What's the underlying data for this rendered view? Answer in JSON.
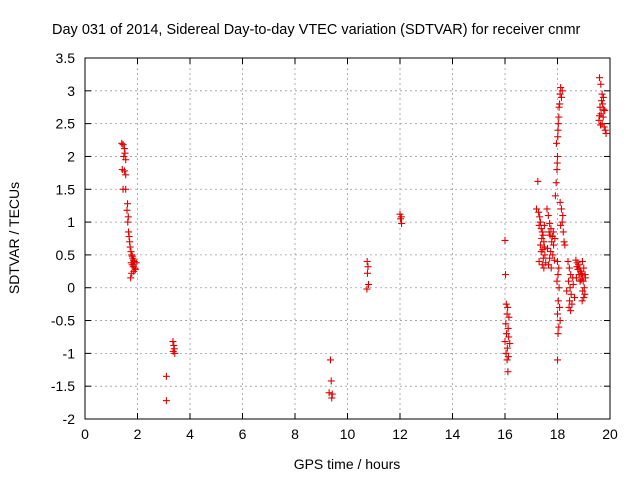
{
  "chart_data": {
    "type": "scatter",
    "title": "Day 031 of 2014, Sidereal Day-to-day VTEC variation (SDTVAR) for receiver cnmr",
    "xlabel": "GPS time / hours",
    "ylabel": "SDTVAR / TECUs",
    "xlim": [
      0,
      20
    ],
    "ylim": [
      -2,
      3.5
    ],
    "xticks": [
      "0",
      "2",
      "4",
      "6",
      "8",
      "10",
      "12",
      "14",
      "16",
      "18",
      "20"
    ],
    "yticks": [
      "3.5",
      "3",
      "2.5",
      "2",
      "1.5",
      "1",
      "0.5",
      "0",
      "-0.5",
      "-1",
      "-1.5",
      "-2"
    ],
    "grid": true,
    "marker": "+",
    "color": "#e00000",
    "series": [
      {
        "name": "SDTVAR",
        "points": [
          [
            1.4,
            2.2
          ],
          [
            1.45,
            2.18
          ],
          [
            1.5,
            2.12
          ],
          [
            1.52,
            2.05
          ],
          [
            1.48,
            2.0
          ],
          [
            1.55,
            1.95
          ],
          [
            1.42,
            1.8
          ],
          [
            1.5,
            1.78
          ],
          [
            1.55,
            1.72
          ],
          [
            1.45,
            1.5
          ],
          [
            1.55,
            1.5
          ],
          [
            1.62,
            1.28
          ],
          [
            1.6,
            1.18
          ],
          [
            1.65,
            1.08
          ],
          [
            1.63,
            1.0
          ],
          [
            1.66,
            0.85
          ],
          [
            1.68,
            0.78
          ],
          [
            1.7,
            0.7
          ],
          [
            1.72,
            0.62
          ],
          [
            1.75,
            0.55
          ],
          [
            1.78,
            0.5
          ],
          [
            1.8,
            0.48
          ],
          [
            1.82,
            0.45
          ],
          [
            1.85,
            0.42
          ],
          [
            1.88,
            0.4
          ],
          [
            1.76,
            0.38
          ],
          [
            1.8,
            0.35
          ],
          [
            1.84,
            0.32
          ],
          [
            1.9,
            0.3
          ],
          [
            1.92,
            0.28
          ],
          [
            1.86,
            0.25
          ],
          [
            1.78,
            0.22
          ],
          [
            1.74,
            0.15
          ],
          [
            1.95,
            0.38
          ],
          [
            3.1,
            -1.35
          ],
          [
            3.1,
            -1.72
          ],
          [
            3.35,
            -0.82
          ],
          [
            3.38,
            -0.88
          ],
          [
            3.4,
            -0.93
          ],
          [
            3.36,
            -0.97
          ],
          [
            3.42,
            -1.0
          ],
          [
            9.35,
            -1.1
          ],
          [
            9.38,
            -1.42
          ],
          [
            9.3,
            -1.6
          ],
          [
            9.42,
            -1.62
          ],
          [
            9.4,
            -1.68
          ],
          [
            10.75,
            0.4
          ],
          [
            10.78,
            0.32
          ],
          [
            10.76,
            0.22
          ],
          [
            10.8,
            0.05
          ],
          [
            10.74,
            -0.02
          ],
          [
            12.0,
            1.12
          ],
          [
            12.05,
            1.08
          ],
          [
            12.02,
            1.05
          ],
          [
            12.06,
            0.98
          ],
          [
            16.0,
            0.72
          ],
          [
            16.02,
            0.2
          ],
          [
            16.05,
            -0.25
          ],
          [
            16.1,
            -0.3
          ],
          [
            16.08,
            -0.4
          ],
          [
            16.15,
            -0.45
          ],
          [
            16.03,
            -0.55
          ],
          [
            16.12,
            -0.62
          ],
          [
            16.06,
            -0.7
          ],
          [
            16.14,
            -0.75
          ],
          [
            16.0,
            -0.82
          ],
          [
            16.18,
            -0.85
          ],
          [
            16.09,
            -0.92
          ],
          [
            16.04,
            -1.0
          ],
          [
            16.13,
            -1.05
          ],
          [
            16.08,
            -1.1
          ],
          [
            16.11,
            -1.28
          ],
          [
            17.25,
            1.62
          ],
          [
            17.2,
            1.2
          ],
          [
            17.28,
            1.15
          ],
          [
            17.32,
            1.08
          ],
          [
            17.35,
            1.0
          ],
          [
            17.3,
            0.95
          ],
          [
            17.38,
            0.9
          ],
          [
            17.42,
            0.85
          ],
          [
            17.45,
            0.8
          ],
          [
            17.4,
            0.75
          ],
          [
            17.48,
            0.7
          ],
          [
            17.35,
            0.65
          ],
          [
            17.5,
            0.62
          ],
          [
            17.44,
            0.58
          ],
          [
            17.38,
            0.55
          ],
          [
            17.52,
            0.5
          ],
          [
            17.46,
            0.45
          ],
          [
            17.3,
            0.4
          ],
          [
            17.55,
            0.38
          ],
          [
            17.42,
            0.35
          ],
          [
            17.48,
            0.3
          ],
          [
            17.5,
            0.95
          ],
          [
            17.6,
            1.2
          ],
          [
            17.65,
            1.1
          ],
          [
            17.7,
            0.98
          ],
          [
            17.75,
            0.9
          ],
          [
            17.68,
            0.85
          ],
          [
            17.72,
            0.8
          ],
          [
            17.8,
            0.78
          ],
          [
            17.78,
            0.7
          ],
          [
            17.85,
            0.65
          ],
          [
            17.62,
            0.6
          ],
          [
            17.74,
            0.55
          ],
          [
            17.82,
            0.5
          ],
          [
            17.7,
            0.45
          ],
          [
            17.88,
            0.42
          ],
          [
            17.66,
            0.35
          ],
          [
            17.76,
            0.3
          ],
          [
            17.84,
            0.85
          ],
          [
            17.9,
            0.75
          ],
          [
            17.92,
            1.4
          ],
          [
            17.95,
            1.6
          ],
          [
            17.98,
            1.8
          ],
          [
            18.0,
            2.0
          ],
          [
            17.96,
            2.2
          ],
          [
            18.02,
            2.4
          ],
          [
            18.05,
            2.6
          ],
          [
            18.08,
            2.8
          ],
          [
            18.1,
            2.95
          ],
          [
            18.12,
            3.05
          ],
          [
            18.15,
            2.9
          ],
          [
            18.18,
            3.0
          ],
          [
            18.06,
            2.75
          ],
          [
            18.03,
            2.5
          ],
          [
            18.01,
            2.3
          ],
          [
            17.99,
            1.9
          ],
          [
            18.1,
            1.3
          ],
          [
            18.15,
            1.2
          ],
          [
            18.2,
            1.1
          ],
          [
            18.18,
            1.0
          ],
          [
            18.22,
            0.85
          ],
          [
            18.25,
            0.7
          ],
          [
            18.28,
            0.65
          ],
          [
            18.12,
            0.95
          ],
          [
            18.0,
            0.4
          ],
          [
            18.05,
            0.3
          ],
          [
            18.02,
            0.2
          ],
          [
            17.98,
            0.1
          ],
          [
            18.06,
            0.0
          ],
          [
            18.03,
            -0.2
          ],
          [
            18.08,
            -0.3
          ],
          [
            18.0,
            -0.4
          ],
          [
            18.1,
            -0.5
          ],
          [
            18.05,
            -0.6
          ],
          [
            18.02,
            -0.7
          ],
          [
            18.0,
            -1.1
          ],
          [
            18.4,
            0.4
          ],
          [
            18.45,
            0.3
          ],
          [
            18.5,
            0.2
          ],
          [
            18.42,
            0.1
          ],
          [
            18.48,
            0.0
          ],
          [
            18.52,
            -0.1
          ],
          [
            18.46,
            -0.2
          ],
          [
            18.55,
            -0.25
          ],
          [
            18.44,
            -0.3
          ],
          [
            18.5,
            -0.35
          ],
          [
            18.6,
            0.05
          ],
          [
            18.65,
            -0.15
          ],
          [
            18.35,
            -0.05
          ],
          [
            18.58,
            0.15
          ],
          [
            18.7,
            0.42
          ],
          [
            18.75,
            0.38
          ],
          [
            18.8,
            0.35
          ],
          [
            18.85,
            0.3
          ],
          [
            18.78,
            0.28
          ],
          [
            18.88,
            0.25
          ],
          [
            18.92,
            0.22
          ],
          [
            18.82,
            0.2
          ],
          [
            18.95,
            0.18
          ],
          [
            18.72,
            0.15
          ],
          [
            18.9,
            0.12
          ],
          [
            18.86,
            0.1
          ],
          [
            18.74,
            0.32
          ],
          [
            18.95,
            0.4
          ],
          [
            19.0,
            0.3
          ],
          [
            19.05,
            0.2
          ],
          [
            18.98,
            0.1
          ],
          [
            19.02,
            0.0
          ],
          [
            18.96,
            -0.05
          ],
          [
            19.04,
            -0.1
          ],
          [
            19.0,
            -0.15
          ],
          [
            18.94,
            -0.2
          ],
          [
            19.06,
            0.15
          ],
          [
            19.6,
            3.2
          ],
          [
            19.65,
            3.1
          ],
          [
            19.7,
            2.95
          ],
          [
            19.75,
            2.9
          ],
          [
            19.68,
            2.85
          ],
          [
            19.72,
            2.8
          ],
          [
            19.62,
            2.75
          ],
          [
            19.8,
            2.7
          ],
          [
            19.66,
            2.65
          ],
          [
            19.74,
            2.6
          ],
          [
            19.58,
            2.55
          ],
          [
            19.7,
            2.5
          ],
          [
            19.64,
            2.48
          ],
          [
            19.78,
            2.45
          ],
          [
            19.82,
            2.4
          ],
          [
            19.85,
            2.35
          ],
          [
            19.6,
            2.62
          ],
          [
            19.76,
            2.72
          ]
        ]
      }
    ]
  }
}
